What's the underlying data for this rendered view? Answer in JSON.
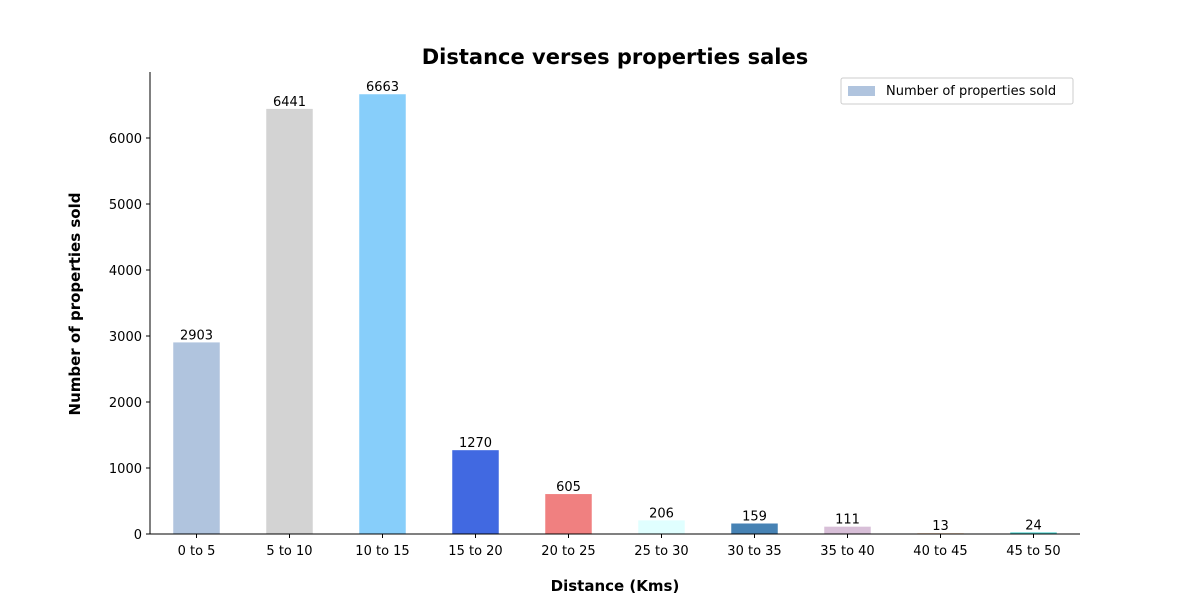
{
  "chart_data": {
    "type": "bar",
    "title": "Distance verses properties sales",
    "xlabel": "Distance (Kms)",
    "ylabel": "Number of properties sold",
    "categories": [
      "0 to 5",
      "5 to 10",
      "10 to 15",
      "15 to 20",
      "20 to 25",
      "25 to 30",
      "30 to 35",
      "35 to 40",
      "40 to 45",
      "45 to 50"
    ],
    "values": [
      2903,
      6441,
      6663,
      1270,
      605,
      206,
      159,
      111,
      13,
      24
    ],
    "data_labels": [
      "2903",
      "6441",
      "6663",
      "1270",
      "605",
      "206",
      "159",
      "111",
      "13",
      "24"
    ],
    "bar_colors": [
      "#b0c4de",
      "#d3d3d3",
      "#87cefa",
      "#4169e1",
      "#f08080",
      "#e0ffff",
      "#4682b4",
      "#d8bfd8",
      "#ffdab9",
      "#48d1cc"
    ],
    "ylim": [
      0,
      7000
    ],
    "yticks": [
      0,
      1000,
      2000,
      3000,
      4000,
      5000,
      6000
    ],
    "ytick_labels": [
      "0",
      "1000",
      "2000",
      "3000",
      "4000",
      "5000",
      "6000"
    ],
    "grid": false,
    "legend": {
      "position": "top-right",
      "entries": [
        {
          "label": "Number of properties sold",
          "color": "#b0c4de"
        }
      ]
    }
  }
}
